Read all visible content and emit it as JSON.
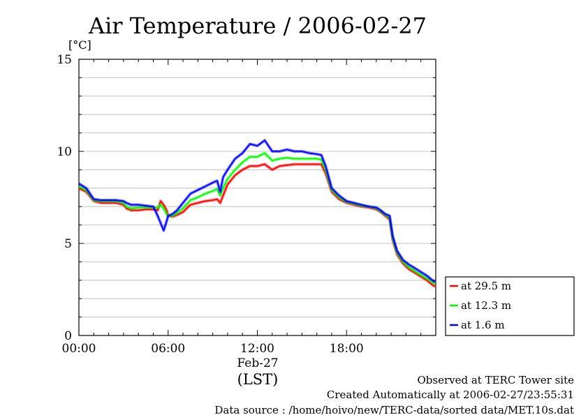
{
  "chart_data": {
    "type": "line",
    "title": "Air Temperature / 2006-02-27",
    "ylabel": "[°C]",
    "xlabel": "(LST)",
    "date_label": "Feb-27",
    "ylim": [
      0,
      15
    ],
    "xlim_hours": [
      0,
      24
    ],
    "grid": "horizontal",
    "y_ticks": [
      0,
      5,
      10,
      15
    ],
    "x_ticks": [
      {
        "hour": 0,
        "label": "00:00"
      },
      {
        "hour": 6,
        "label": "06:00"
      },
      {
        "hour": 12,
        "label": "12:00"
      },
      {
        "hour": 18,
        "label": "18:00"
      }
    ],
    "legend_position": "right-bottom",
    "series": [
      {
        "name": "at 29.5 m",
        "color": "#ff0000",
        "points": [
          [
            0,
            8.0
          ],
          [
            0.5,
            7.8
          ],
          [
            1,
            7.3
          ],
          [
            1.5,
            7.2
          ],
          [
            2,
            7.2
          ],
          [
            2.5,
            7.2
          ],
          [
            3,
            7.1
          ],
          [
            3.2,
            6.9
          ],
          [
            3.5,
            6.8
          ],
          [
            4,
            6.8
          ],
          [
            4.5,
            6.85
          ],
          [
            5,
            6.85
          ],
          [
            5.3,
            6.8
          ],
          [
            5.5,
            7.3
          ],
          [
            5.7,
            7.1
          ],
          [
            5.9,
            6.8
          ],
          [
            6,
            6.5
          ],
          [
            6.3,
            6.45
          ],
          [
            6.6,
            6.55
          ],
          [
            7,
            6.7
          ],
          [
            7.5,
            7.1
          ],
          [
            8,
            7.2
          ],
          [
            8.5,
            7.3
          ],
          [
            9,
            7.35
          ],
          [
            9.3,
            7.4
          ],
          [
            9.5,
            7.2
          ],
          [
            9.7,
            7.6
          ],
          [
            10,
            8.2
          ],
          [
            10.5,
            8.7
          ],
          [
            11,
            9.0
          ],
          [
            11.5,
            9.2
          ],
          [
            12,
            9.2
          ],
          [
            12.5,
            9.3
          ],
          [
            13,
            9.0
          ],
          [
            13.5,
            9.2
          ],
          [
            14,
            9.25
          ],
          [
            14.5,
            9.3
          ],
          [
            15,
            9.3
          ],
          [
            15.5,
            9.3
          ],
          [
            16,
            9.3
          ],
          [
            16.3,
            9.3
          ],
          [
            16.6,
            8.8
          ],
          [
            17,
            7.8
          ],
          [
            17.5,
            7.4
          ],
          [
            18,
            7.2
          ],
          [
            18.5,
            7.1
          ],
          [
            19,
            7.0
          ],
          [
            19.5,
            6.95
          ],
          [
            20,
            6.85
          ],
          [
            20.3,
            6.7
          ],
          [
            20.6,
            6.5
          ],
          [
            20.9,
            6.3
          ],
          [
            21.1,
            5.2
          ],
          [
            21.4,
            4.4
          ],
          [
            21.8,
            3.9
          ],
          [
            22.2,
            3.6
          ],
          [
            22.6,
            3.4
          ],
          [
            23,
            3.2
          ],
          [
            23.4,
            3.0
          ],
          [
            23.7,
            2.8
          ],
          [
            23.95,
            2.65
          ]
        ]
      },
      {
        "name": "at 12.3 m",
        "color": "#00ff00",
        "points": [
          [
            0,
            8.1
          ],
          [
            0.5,
            7.9
          ],
          [
            1,
            7.35
          ],
          [
            1.5,
            7.3
          ],
          [
            2,
            7.3
          ],
          [
            2.5,
            7.3
          ],
          [
            3,
            7.2
          ],
          [
            3.2,
            7.0
          ],
          [
            3.5,
            6.9
          ],
          [
            4,
            6.95
          ],
          [
            4.5,
            6.95
          ],
          [
            5,
            6.95
          ],
          [
            5.3,
            6.95
          ],
          [
            5.5,
            7.1
          ],
          [
            5.7,
            6.9
          ],
          [
            5.9,
            6.6
          ],
          [
            6,
            6.5
          ],
          [
            6.3,
            6.5
          ],
          [
            6.6,
            6.65
          ],
          [
            7,
            6.9
          ],
          [
            7.5,
            7.35
          ],
          [
            8,
            7.5
          ],
          [
            8.5,
            7.7
          ],
          [
            9,
            7.85
          ],
          [
            9.3,
            7.95
          ],
          [
            9.5,
            7.6
          ],
          [
            9.7,
            8.0
          ],
          [
            10,
            8.5
          ],
          [
            10.5,
            9.0
          ],
          [
            11,
            9.4
          ],
          [
            11.5,
            9.7
          ],
          [
            12,
            9.7
          ],
          [
            12.5,
            9.9
          ],
          [
            13,
            9.5
          ],
          [
            13.5,
            9.6
          ],
          [
            14,
            9.65
          ],
          [
            14.5,
            9.6
          ],
          [
            15,
            9.6
          ],
          [
            15.5,
            9.6
          ],
          [
            16,
            9.6
          ],
          [
            16.3,
            9.55
          ],
          [
            16.6,
            9.0
          ],
          [
            17,
            7.9
          ],
          [
            17.5,
            7.5
          ],
          [
            18,
            7.25
          ],
          [
            18.5,
            7.15
          ],
          [
            19,
            7.05
          ],
          [
            19.5,
            7.0
          ],
          [
            20,
            6.9
          ],
          [
            20.3,
            6.75
          ],
          [
            20.6,
            6.55
          ],
          [
            20.9,
            6.4
          ],
          [
            21.1,
            5.3
          ],
          [
            21.4,
            4.5
          ],
          [
            21.8,
            4.0
          ],
          [
            22.2,
            3.7
          ],
          [
            22.6,
            3.5
          ],
          [
            23,
            3.3
          ],
          [
            23.4,
            3.1
          ],
          [
            23.7,
            2.95
          ],
          [
            23.95,
            2.8
          ]
        ]
      },
      {
        "name": "at 1.6 m",
        "color": "#0000ff",
        "points": [
          [
            0,
            8.25
          ],
          [
            0.5,
            8.0
          ],
          [
            1,
            7.4
          ],
          [
            1.5,
            7.35
          ],
          [
            2,
            7.35
          ],
          [
            2.5,
            7.35
          ],
          [
            3,
            7.3
          ],
          [
            3.2,
            7.2
          ],
          [
            3.5,
            7.1
          ],
          [
            4,
            7.1
          ],
          [
            4.5,
            7.05
          ],
          [
            5,
            7.0
          ],
          [
            5.3,
            6.5
          ],
          [
            5.5,
            6.1
          ],
          [
            5.7,
            5.7
          ],
          [
            5.9,
            6.2
          ],
          [
            6,
            6.5
          ],
          [
            6.3,
            6.6
          ],
          [
            6.6,
            6.8
          ],
          [
            7,
            7.2
          ],
          [
            7.5,
            7.7
          ],
          [
            8,
            7.9
          ],
          [
            8.5,
            8.1
          ],
          [
            9,
            8.3
          ],
          [
            9.3,
            8.4
          ],
          [
            9.5,
            7.8
          ],
          [
            9.7,
            8.6
          ],
          [
            10,
            9.0
          ],
          [
            10.5,
            9.6
          ],
          [
            11,
            9.9
          ],
          [
            11.5,
            10.4
          ],
          [
            12,
            10.3
          ],
          [
            12.5,
            10.6
          ],
          [
            13,
            10.0
          ],
          [
            13.5,
            10.0
          ],
          [
            14,
            10.1
          ],
          [
            14.5,
            10.0
          ],
          [
            15,
            10.0
          ],
          [
            15.5,
            9.9
          ],
          [
            16,
            9.85
          ],
          [
            16.3,
            9.8
          ],
          [
            16.6,
            9.2
          ],
          [
            17,
            8.0
          ],
          [
            17.5,
            7.6
          ],
          [
            18,
            7.3
          ],
          [
            18.5,
            7.2
          ],
          [
            19,
            7.1
          ],
          [
            19.5,
            7.0
          ],
          [
            20,
            6.95
          ],
          [
            20.3,
            6.8
          ],
          [
            20.6,
            6.6
          ],
          [
            20.9,
            6.5
          ],
          [
            21.1,
            5.4
          ],
          [
            21.4,
            4.6
          ],
          [
            21.8,
            4.1
          ],
          [
            22.2,
            3.85
          ],
          [
            22.6,
            3.65
          ],
          [
            23,
            3.45
          ],
          [
            23.4,
            3.25
          ],
          [
            23.7,
            3.05
          ],
          [
            23.95,
            2.9
          ]
        ]
      }
    ]
  },
  "footer": {
    "site": "Observed at TERC Tower site",
    "created": "Created Automatically at 2006-02-27/23:55:31",
    "source": "Data source : /home/hoivo/new/TERC-data/sorted  data/MET.10s.dat"
  }
}
